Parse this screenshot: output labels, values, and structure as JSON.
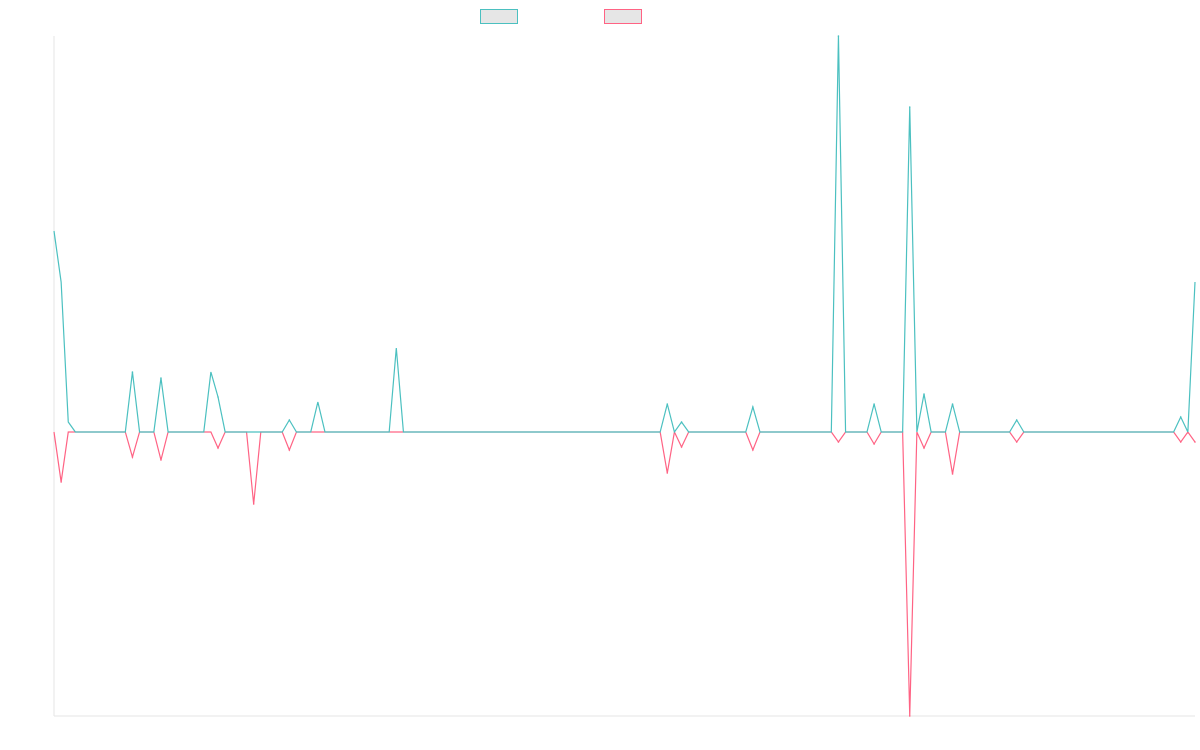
{
  "colors": {
    "series_a": "#4bc0c0",
    "series_b": "#ff6384",
    "axis": "#e5e5e5",
    "legend_fill": "#e6e6e6"
  },
  "legend": {
    "placement": "top-center",
    "items": [
      {
        "label": "",
        "color": "#4bc0c0"
      },
      {
        "label": "",
        "color": "#ff6384"
      }
    ]
  },
  "chart_data": {
    "type": "line",
    "title": "",
    "xlabel": "",
    "ylabel": "",
    "grid": false,
    "ylim": [
      -284,
      396
    ],
    "x_count": 161,
    "series": [
      {
        "values": [
          201,
          150,
          10,
          0,
          0,
          0,
          0,
          0,
          0,
          0,
          0,
          0,
          0,
          0,
          0,
          0,
          0,
          0,
          0,
          0,
          0,
          0,
          60,
          0,
          0,
          0,
          0,
          0,
          0,
          0,
          0,
          0,
          0,
          0,
          0,
          0,
          0,
          30,
          0,
          0,
          0,
          0,
          0,
          0,
          0,
          0,
          0,
          0,
          84,
          0,
          0,
          0,
          0,
          0,
          0,
          0,
          0,
          0,
          0,
          0,
          0,
          0,
          0,
          0,
          0,
          0,
          0,
          0,
          0,
          0,
          0,
          0,
          0,
          0,
          0,
          0,
          0,
          0,
          0,
          0,
          0,
          0,
          0,
          0,
          0,
          0,
          0,
          0,
          0,
          0,
          0,
          0,
          0,
          0,
          0,
          0,
          0,
          0,
          0,
          0,
          0,
          0,
          0,
          0,
          0,
          0,
          0,
          0,
          0,
          0,
          0,
          0,
          0,
          0,
          0,
          0,
          0,
          0,
          0,
          0,
          0,
          0,
          0,
          0,
          0,
          0,
          0,
          0,
          0,
          0,
          0,
          0,
          0,
          0,
          0,
          0,
          0,
          0,
          0,
          0,
          0,
          0,
          0,
          0,
          0,
          0,
          0,
          0,
          0,
          0,
          0,
          0,
          0,
          0,
          0,
          0,
          0,
          0,
          0,
          0,
          150
        ],
        "spikes": [
          {
            "x": 11,
            "y": 60
          },
          {
            "x": 15,
            "y": 54
          },
          {
            "x": 23,
            "y": 35
          },
          {
            "x": 33,
            "y": 12
          },
          {
            "x": 86,
            "y": 28
          },
          {
            "x": 88,
            "y": 10
          },
          {
            "x": 98,
            "y": 25
          },
          {
            "x": 110,
            "y": 396
          },
          {
            "x": 115,
            "y": 28
          },
          {
            "x": 120,
            "y": 325
          },
          {
            "x": 122,
            "y": 38
          },
          {
            "x": 126,
            "y": 28
          },
          {
            "x": 135,
            "y": 12
          },
          {
            "x": 158,
            "y": 15
          }
        ]
      },
      {
        "values": [],
        "spikes": [
          {
            "x": 1,
            "y": -50
          },
          {
            "x": 11,
            "y": -25
          },
          {
            "x": 15,
            "y": -28
          },
          {
            "x": 23,
            "y": -16
          },
          {
            "x": 28,
            "y": -72
          },
          {
            "x": 33,
            "y": -18
          },
          {
            "x": 86,
            "y": -41
          },
          {
            "x": 88,
            "y": -15
          },
          {
            "x": 98,
            "y": -18
          },
          {
            "x": 110,
            "y": -10
          },
          {
            "x": 115,
            "y": -12
          },
          {
            "x": 120,
            "y": -284
          },
          {
            "x": 122,
            "y": -16
          },
          {
            "x": 126,
            "y": -42
          },
          {
            "x": 135,
            "y": -10
          },
          {
            "x": 158,
            "y": -10
          },
          {
            "x": 160,
            "y": -10
          }
        ]
      }
    ]
  }
}
